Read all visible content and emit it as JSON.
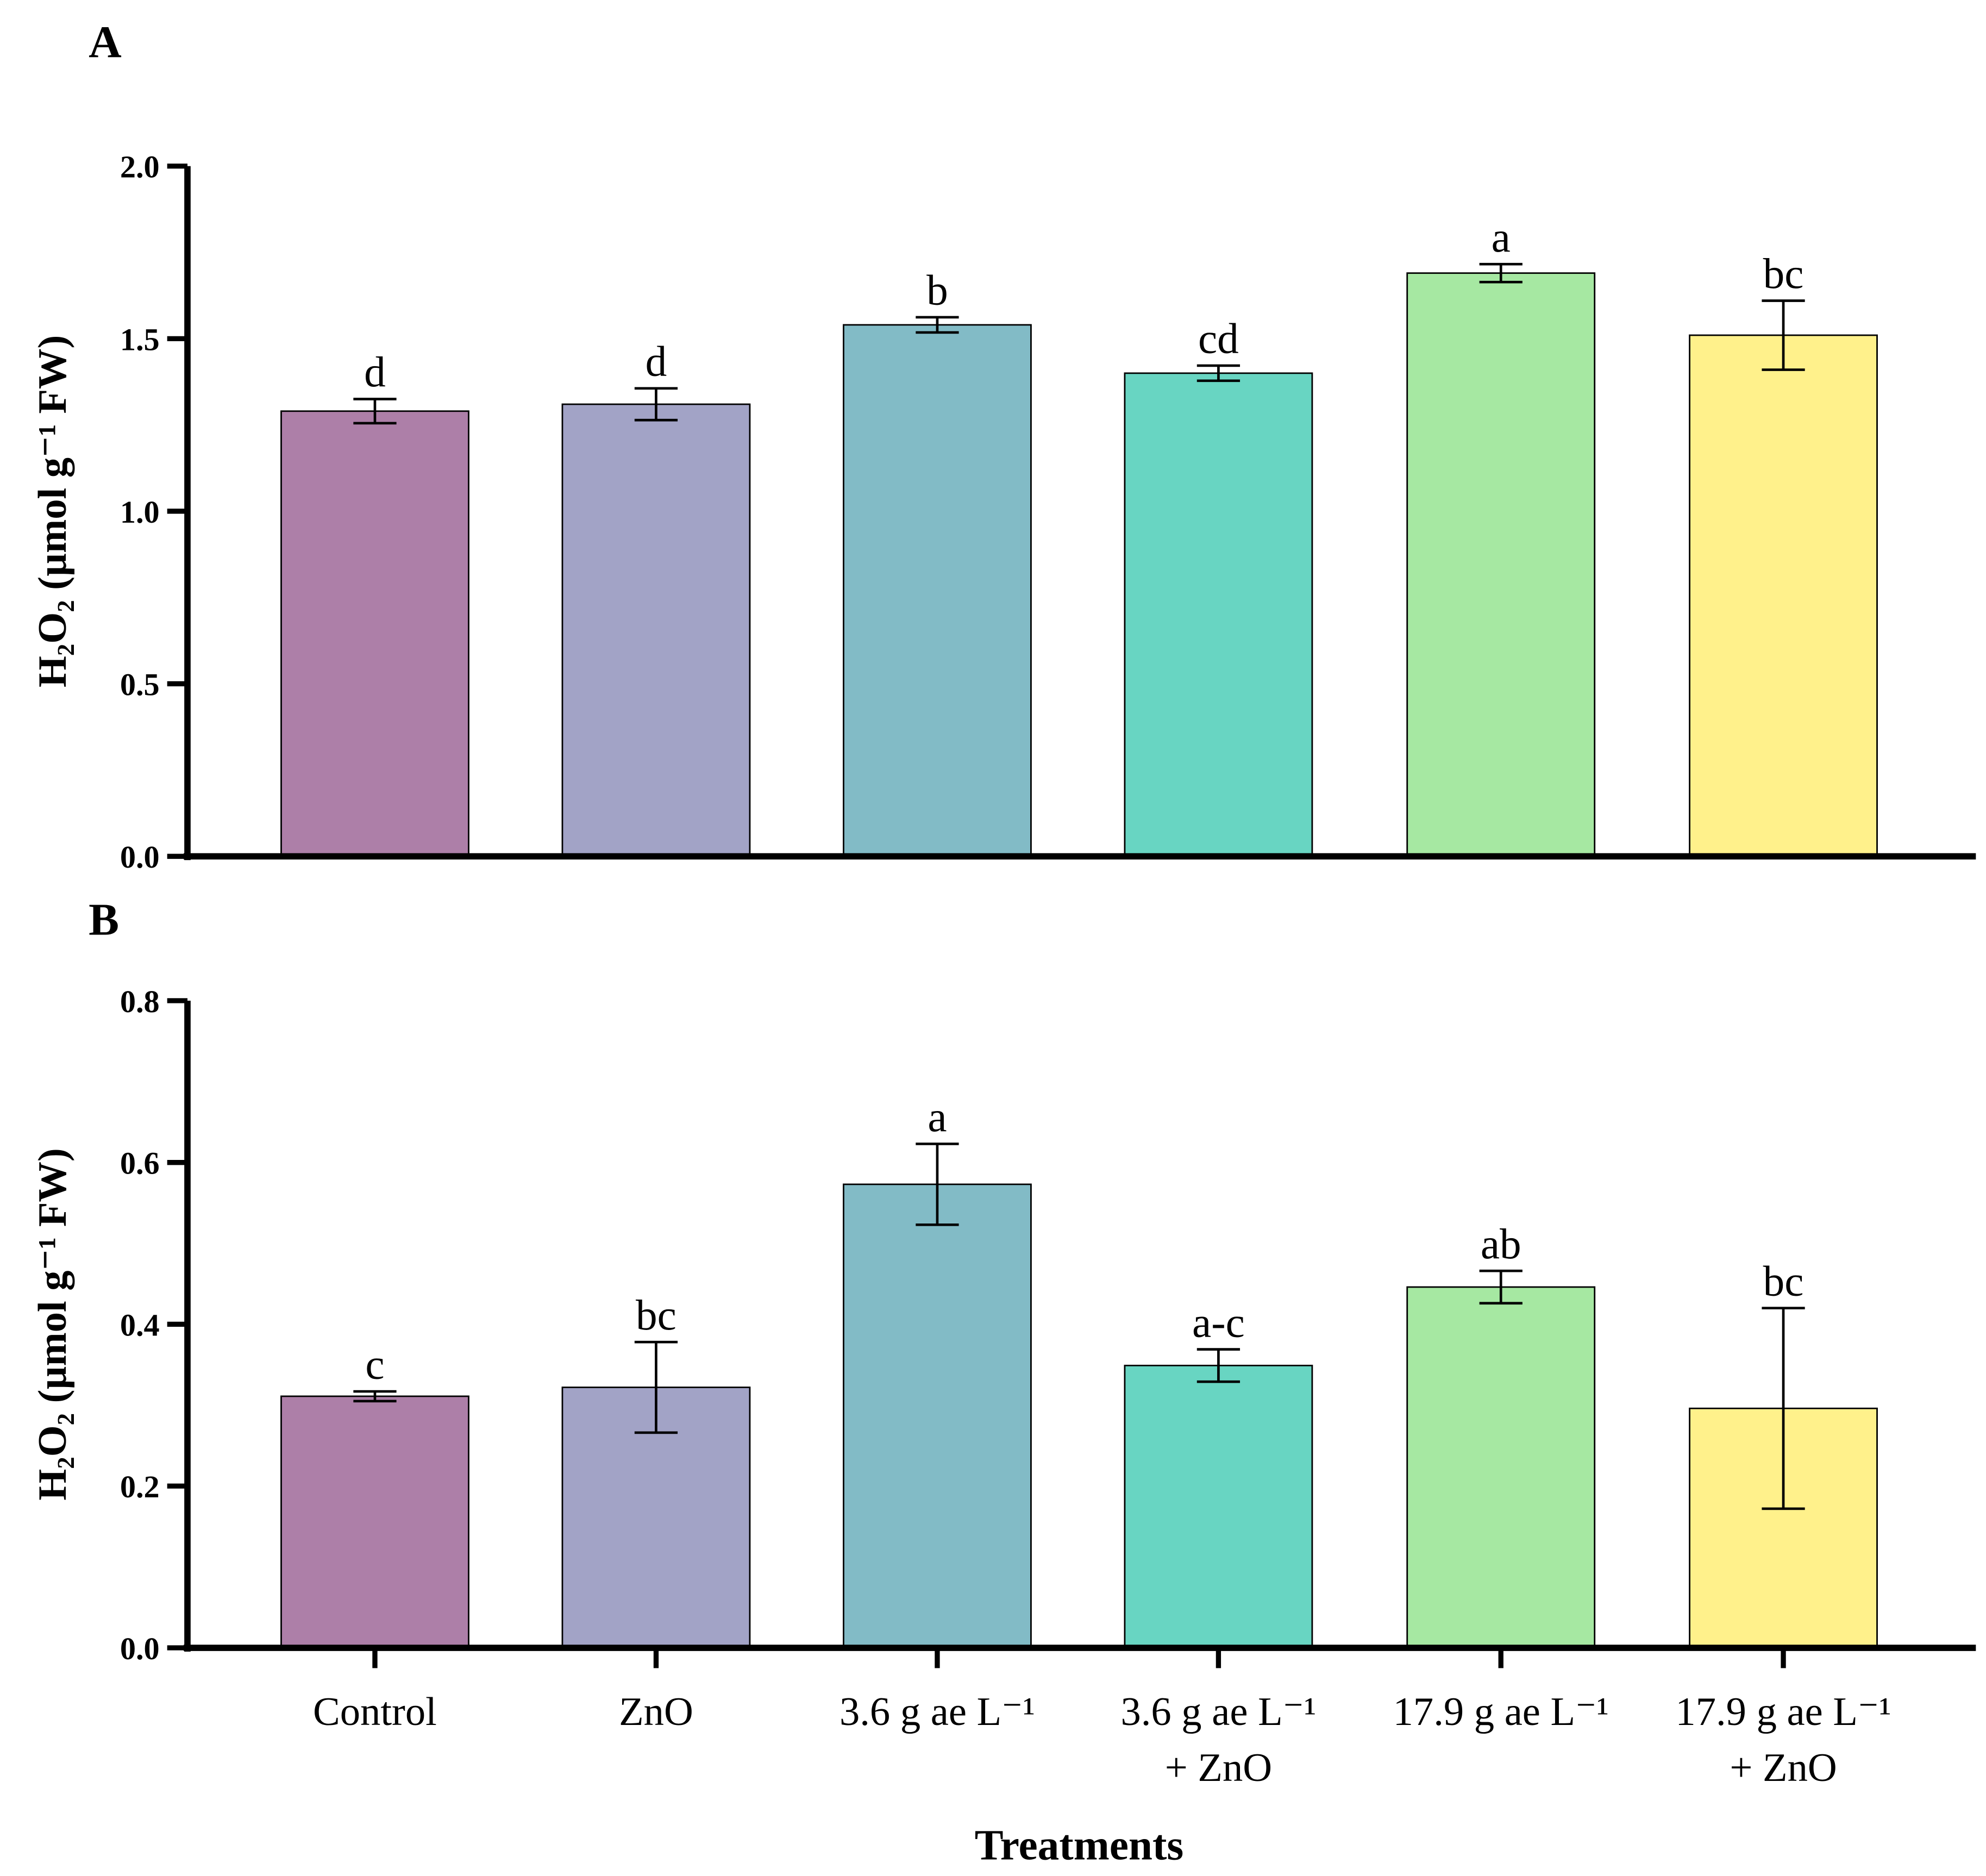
{
  "chart_data": [
    {
      "type": "bar",
      "panel": "A",
      "ylabel": "H₂O₂ (µmol g⁻¹ FW)",
      "ylim": [
        0,
        2.0
      ],
      "yticks": [
        "0.0",
        "0.5",
        "1.0",
        "1.5",
        "2.0"
      ],
      "ytick_values": [
        0,
        0.5,
        1.0,
        1.5,
        2.0
      ],
      "categories": [
        "Control",
        "ZnO",
        "3.6 g ae L⁻¹",
        "3.6 g ae L⁻¹ + ZnO",
        "17.9 g ae L⁻¹",
        "17.9 g ae L⁻¹ + ZnO"
      ],
      "values": [
        1.29,
        1.31,
        1.54,
        1.4,
        1.69,
        1.51
      ],
      "errors": [
        0.035,
        0.046,
        0.022,
        0.022,
        0.026,
        0.1
      ],
      "letters": [
        "d",
        "d",
        "b",
        "cd",
        "a",
        "bc"
      ]
    },
    {
      "type": "bar",
      "panel": "B",
      "ylabel": "H₂O₂ (µmol g⁻¹ FW)",
      "ylim": [
        0,
        0.8
      ],
      "yticks": [
        "0.0",
        "0.2",
        "0.4",
        "0.6",
        "0.8"
      ],
      "ytick_values": [
        0,
        0.2,
        0.4,
        0.6,
        0.8
      ],
      "categories": [
        "Control",
        "ZnO",
        "3.6 g ae L⁻¹",
        "3.6 g ae L⁻¹ + ZnO",
        "17.9 g ae L⁻¹",
        "17.9 g ae L⁻¹ + ZnO"
      ],
      "values": [
        0.311,
        0.322,
        0.573,
        0.349,
        0.446,
        0.296
      ],
      "errors": [
        0.006,
        0.056,
        0.05,
        0.02,
        0.02,
        0.124
      ],
      "letters": [
        "c",
        "bc",
        "a",
        "a-c",
        "ab",
        "bc"
      ]
    }
  ],
  "xtick_lines": [
    [
      "Control"
    ],
    [
      "ZnO"
    ],
    [
      "3.6 g ae L⁻¹"
    ],
    [
      "3.6 g ae L⁻¹",
      "+ ZnO"
    ],
    [
      "17.9 g ae L⁻¹"
    ],
    [
      "17.9 g ae L⁻¹",
      "+ ZnO"
    ]
  ],
  "xlabel": "Treatments",
  "colors": [
    "#ad7fa8",
    "#a2a3c6",
    "#82bbc6",
    "#68d5c2",
    "#a6e8a2",
    "#fff18b"
  ]
}
